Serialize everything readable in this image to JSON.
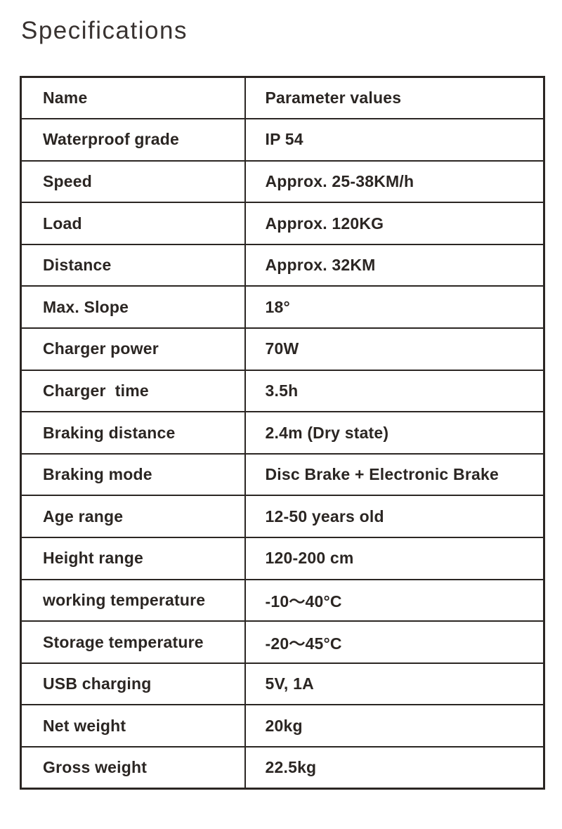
{
  "page": {
    "title": "Specifications",
    "background_color": "#ffffff",
    "text_color": "#2b2623",
    "border_color": "#2b2623"
  },
  "table": {
    "header": {
      "name": "Name",
      "value": "Parameter values"
    },
    "rows": [
      {
        "name": "Waterproof grade",
        "value": "IP 54"
      },
      {
        "name": "Speed",
        "value": "Approx. 25-38KM/h"
      },
      {
        "name": "Load",
        "value": "Approx. 120KG"
      },
      {
        "name": "Distance",
        "value": "Approx. 32KM"
      },
      {
        "name": "Max. Slope",
        "value": "18°"
      },
      {
        "name": "Charger power",
        "value": "70W"
      },
      {
        "name": "Charger  time",
        "value": "3.5h"
      },
      {
        "name": "Braking distance",
        "value": "2.4m (Dry state)"
      },
      {
        "name": "Braking mode",
        "value": "Disc Brake + Electronic Brake"
      },
      {
        "name": "Age range",
        "value": "12-50 years old"
      },
      {
        "name": "Height range",
        "value": "120-200 cm"
      },
      {
        "name": "working temperature",
        "value": "-10～40°C"
      },
      {
        "name": "Storage temperature",
        "value": "-20～45°C"
      },
      {
        "name": "USB charging",
        "value": "5V, 1A"
      },
      {
        "name": "Net weight",
        "value": "20kg"
      },
      {
        "name": "Gross weight",
        "value": "22.5kg"
      }
    ]
  }
}
